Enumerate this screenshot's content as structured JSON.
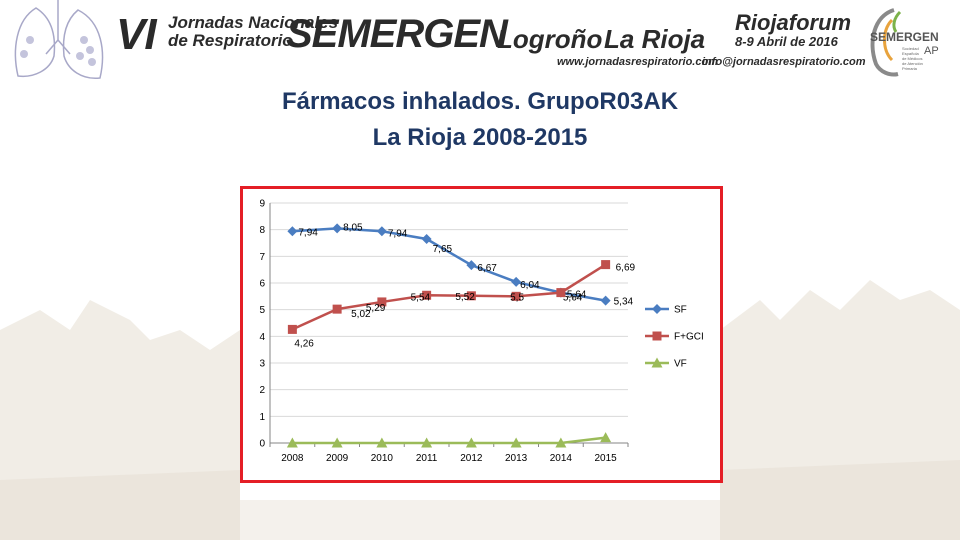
{
  "header": {
    "event_number": "VI",
    "event_line1": "Jornadas Nacionales",
    "event_line2": "de Respiratorio",
    "brand": "SEMERGEN",
    "city": "Logroño",
    "region": "La Rioja",
    "website": "www.jornadasrespiratorio.com",
    "email": "info@jornadasrespiratorio.com",
    "venue": "Riojaforum",
    "dates": "8-9 Abril de 2016",
    "org_name": "SEMERGEN",
    "org_suffix": "AP",
    "org_line1": "Sociedad",
    "org_line2": "Española",
    "org_line3": "de Médicos",
    "org_line4": "de Atención",
    "org_line5": "Primaria"
  },
  "slide": {
    "title_line1": "Fármacos inhalados. GrupoR03AK",
    "title_line2": "La Rioja 2008-2015"
  },
  "colors": {
    "title": "#1f3864",
    "frame": "#e41e26",
    "sf": "#4a7dc1",
    "fgci": "#c0504d",
    "vf": "#9bbb59"
  },
  "chart_data": {
    "type": "line",
    "categories": [
      "2008",
      "2009",
      "2010",
      "2011",
      "2012",
      "2013",
      "2014",
      "2015"
    ],
    "ylim": [
      0,
      9
    ],
    "yticks": [
      "0",
      "1",
      "2",
      "3",
      "4",
      "5",
      "6",
      "7",
      "8",
      "9"
    ],
    "grid": true,
    "legend_position": "right",
    "series": [
      {
        "name": "SF",
        "values": [
          7.94,
          8.05,
          7.94,
          7.65,
          6.67,
          6.04,
          5.64,
          5.34
        ],
        "labels": [
          "7,94",
          "8,05",
          "7,94",
          "7,65",
          "6,67",
          "6,04",
          "5,64",
          "5,34"
        ],
        "marker": "diamond",
        "color": "#4a7dc1"
      },
      {
        "name": "F+GCI",
        "values": [
          4.26,
          5.02,
          5.29,
          5.54,
          5.52,
          5.5,
          5.64,
          6.69
        ],
        "labels": [
          "4,26",
          "5,02",
          "5,29",
          "5,54",
          "5,52",
          "5,5",
          "5,64",
          "6,69"
        ],
        "marker": "square",
        "color": "#c0504d"
      },
      {
        "name": "VF",
        "values": [
          0,
          0,
          0,
          0,
          0,
          0,
          0,
          0.2
        ],
        "labels": [],
        "marker": "triangle",
        "color": "#9bbb59"
      }
    ]
  }
}
